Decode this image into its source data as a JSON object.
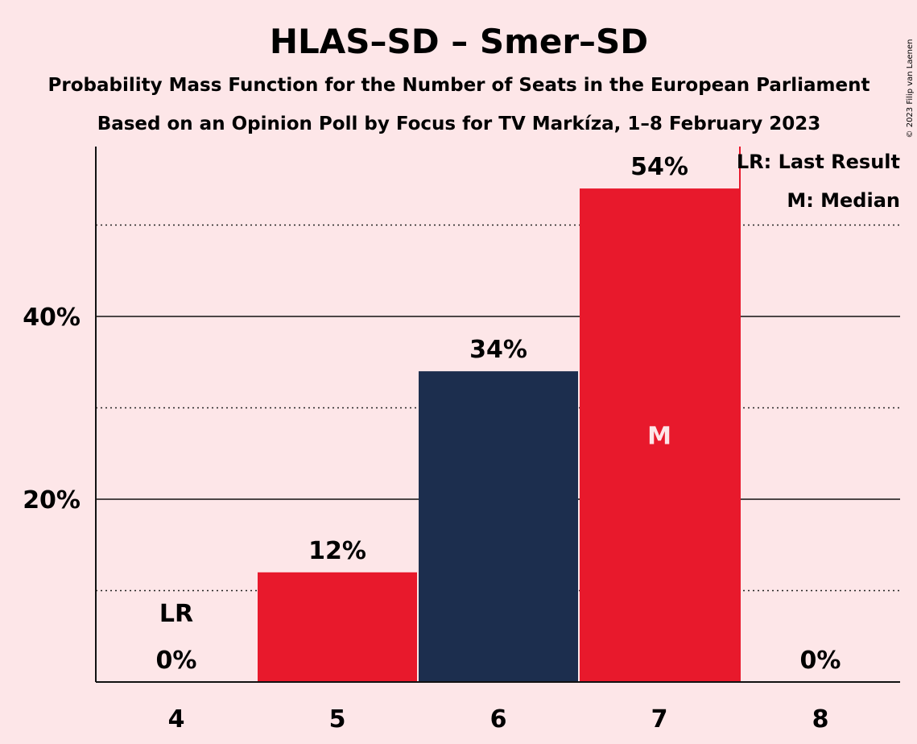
{
  "chart_data": {
    "type": "bar",
    "title": "HLAS–SD – Smer–SD",
    "subtitle": "Probability Mass Function for the Number of Seats in the European Parliament",
    "subtitle2": "Based on an Opinion Poll by Focus for TV Markíza, 1–8 February 2023",
    "copyright": "© 2023 Filip van Laenen",
    "categories": [
      "4",
      "5",
      "6",
      "7",
      "8"
    ],
    "values": [
      0,
      12,
      34,
      54,
      0
    ],
    "value_labels": [
      "0%",
      "12%",
      "34%",
      "54%",
      "0%"
    ],
    "bar_colors": [
      "#e8192c",
      "#e8192c",
      "#1c2e4e",
      "#e8192c",
      "#e8192c"
    ],
    "ylim": [
      0,
      58
    ],
    "y_major_ticks": [
      20,
      40
    ],
    "y_major_labels": [
      "20%",
      "40%"
    ],
    "y_minor_gridlines": [
      10,
      30,
      50
    ],
    "last_result_index": 0,
    "last_result_marker": "LR",
    "median_index": 3,
    "median_marker": "M",
    "legend": [
      "LR: Last Result",
      "M: Median"
    ],
    "legend_placement": "top-right",
    "colors": {
      "background": "#fde6e8",
      "red": "#e8192c",
      "navy": "#1c2e4e",
      "axis": "#111111"
    }
  }
}
